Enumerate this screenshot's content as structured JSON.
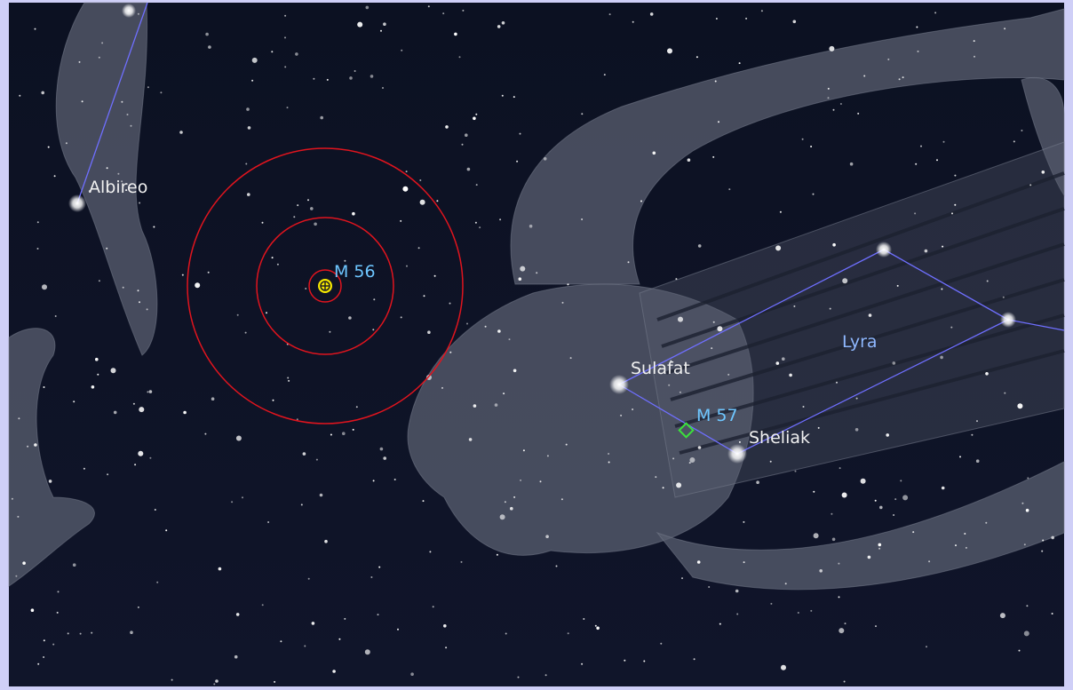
{
  "sky_view": {
    "labels": [
      {
        "label": "Albireo"
      },
      {
        "label": "M 56"
      },
      {
        "label": "Lyra"
      },
      {
        "label": "Sulafat"
      },
      {
        "label": "M 57"
      },
      {
        "label": "Sheliak"
      }
    ]
  }
}
